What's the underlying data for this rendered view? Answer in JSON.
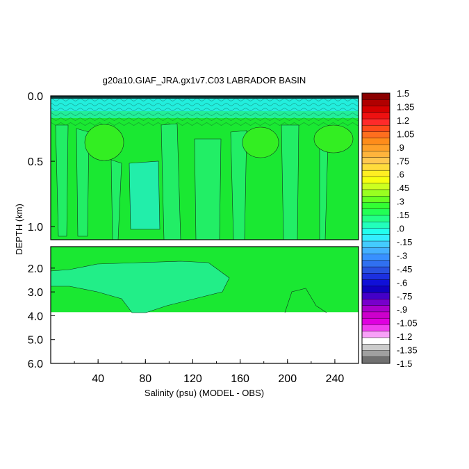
{
  "chart_data": {
    "type": "heatmap",
    "title": "g20a10.GIAF_JRA.gx1v7.C03 LABRADOR BASIN",
    "xlabel": "Salinity (psu) (MODEL - OBS)",
    "ylabel": "DEPTH (km)",
    "xlim": [
      0,
      260
    ],
    "ylim": [
      0.0,
      6.0
    ],
    "upper_panel_ylim": [
      0.0,
      1.1
    ],
    "lower_panel_ylim": [
      1.1,
      6.0
    ],
    "data_bottom_depth": 3.85,
    "x_ticks": [
      "40",
      "80",
      "120",
      "160",
      "200",
      "240"
    ],
    "y_ticks_upper": [
      "0.0",
      "0.5",
      "1.0"
    ],
    "y_ticks_lower": [
      "2.0",
      "3.0",
      "4.0",
      "5.0",
      "6.0"
    ],
    "colorbar": {
      "labels": [
        "1.5",
        "1.35",
        "1.2",
        "1.05",
        ".9",
        ".75",
        ".6",
        ".45",
        ".3",
        ".15",
        ".0",
        "-.15",
        "-.3",
        "-.45",
        "-.6",
        "-.75",
        "-.9",
        "-1.05",
        "-1.2",
        "-1.35",
        "-1.5"
      ],
      "colors": [
        "#8b0000",
        "#b00000",
        "#d40000",
        "#ee1111",
        "#ff2a2a",
        "#ff4a1a",
        "#ff6e1e",
        "#ff8c1a",
        "#ffa028",
        "#ffb43c",
        "#ffc850",
        "#ffdc3c",
        "#ffee22",
        "#f6ff10",
        "#ccff20",
        "#99ff20",
        "#66ff22",
        "#33ff33",
        "#22ff55",
        "#22ff88",
        "#22ffbb",
        "#22ffee",
        "#33eeff",
        "#44ccff",
        "#44b0ff",
        "#3890ff",
        "#3070f0",
        "#2850e0",
        "#1c30e0",
        "#1010d8",
        "#1000c0",
        "#4400c8",
        "#7700cc",
        "#aa00cc",
        "#cc00cc",
        "#e000e0",
        "#f040f0",
        "#f8a0f8",
        "#ffffff",
        "#cccccc",
        "#a0a0a0",
        "#707070"
      ]
    }
  }
}
